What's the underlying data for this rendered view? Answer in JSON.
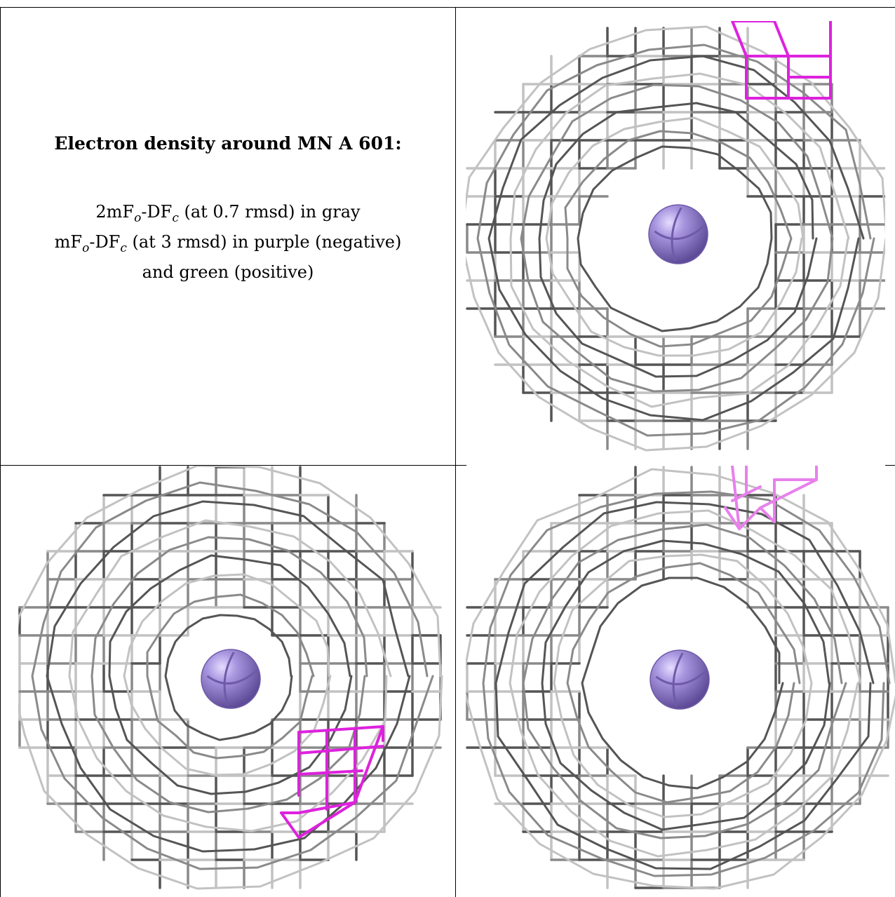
{
  "legend": {
    "title": "Electron density around MN A 601:",
    "line1": {
      "pre": "2mF",
      "sub1": "o",
      "mid": "-DF",
      "sub2": "c",
      "post": " (at 0.7 rmsd) in gray"
    },
    "line2": {
      "pre": "mF",
      "sub1": "o",
      "mid": "-DF",
      "sub2": "c",
      "post": " (at 3 rmsd) in purple (negative)"
    },
    "line3": "and green (positive)"
  },
  "colors": {
    "positive_map": "#00c000",
    "negative_map": "#dd22dd",
    "negative_map_light": "#e880ec",
    "mn_ion": "#9a86d8",
    "mn_ion_dark": "#6f5aa8",
    "mesh_dark": "#555555",
    "mesh_mid": "#8a8a8a",
    "mesh_light": "#c2c2c2"
  },
  "panels": [
    {
      "name": "view-top-right",
      "atom": "MN A 601"
    },
    {
      "name": "view-bottom-left",
      "atom": "MN A 601"
    },
    {
      "name": "view-bottom-right",
      "atom": "MN A 601"
    }
  ]
}
